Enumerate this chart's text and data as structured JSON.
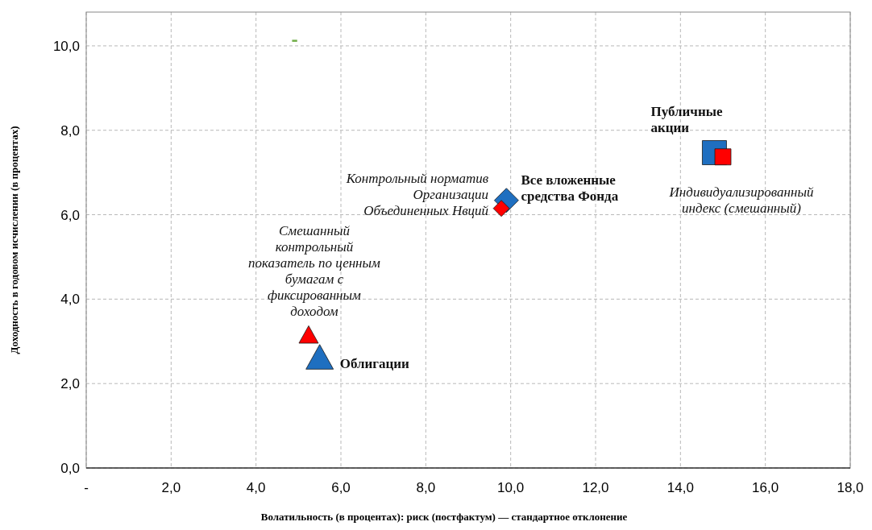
{
  "chart_data": {
    "type": "scatter",
    "xlabel": "Волатильность (в процентах): риск (постфактум) — стандартное отклонение",
    "ylabel": "Доходность в годовом исчислении (в процентах)",
    "xlim": [
      0,
      18
    ],
    "xticks": [
      {
        "value": 0,
        "label": "-"
      },
      {
        "value": 2,
        "label": "2,0"
      },
      {
        "value": 4,
        "label": "4,0"
      },
      {
        "value": 6,
        "label": "6,0"
      },
      {
        "value": 8,
        "label": "8,0"
      },
      {
        "value": 10,
        "label": "10,0"
      },
      {
        "value": 12,
        "label": "12,0"
      },
      {
        "value": 14,
        "label": "14,0"
      },
      {
        "value": 16,
        "label": "16,0"
      },
      {
        "value": 18,
        "label": "18,0"
      }
    ],
    "ylim": [
      0,
      10.8
    ],
    "yticks": [
      {
        "value": 0,
        "label": "0,0"
      },
      {
        "value": 2,
        "label": "2,0"
      },
      {
        "value": 4,
        "label": "4,0"
      },
      {
        "value": 6,
        "label": "6,0"
      },
      {
        "value": 8,
        "label": "8,0"
      },
      {
        "value": 10,
        "label": "10,0"
      }
    ],
    "grid": true,
    "series": [
      {
        "name": "Облигации",
        "color": "#1f6fc0",
        "marker": "triangle",
        "x": [
          5.5
        ],
        "values": [
          2.6
        ]
      },
      {
        "name": "Смешанный контрольный показатель по ценным бумагам с фиксированным доходом",
        "color": "#ff0000",
        "marker": "triangle",
        "x": [
          5.24
        ],
        "values": [
          3.14
        ]
      },
      {
        "name": "Все вложенные средства Фонда",
        "color": "#1f6fc0",
        "marker": "diamond",
        "x": [
          9.9
        ],
        "values": [
          6.34
        ]
      },
      {
        "name": "Контрольный норматив Организации Объединенных Нвций",
        "color": "#ff0000",
        "marker": "diamond",
        "x": [
          9.78
        ],
        "values": [
          6.15
        ]
      },
      {
        "name": "Публичные акции",
        "color": "#1f6fc0",
        "marker": "square",
        "x": [
          14.8
        ],
        "values": [
          7.47
        ]
      },
      {
        "name": "Индивидуализированный индекс (смешанный)",
        "color": "#ff0000",
        "marker": "square",
        "x": [
          15.0
        ],
        "values": [
          7.37
        ]
      },
      {
        "type": "line",
        "color": "#70ad47",
        "marker": "none",
        "x": [
          4.85,
          4.97
        ],
        "values": [
          10.12,
          10.12
        ]
      }
    ]
  }
}
